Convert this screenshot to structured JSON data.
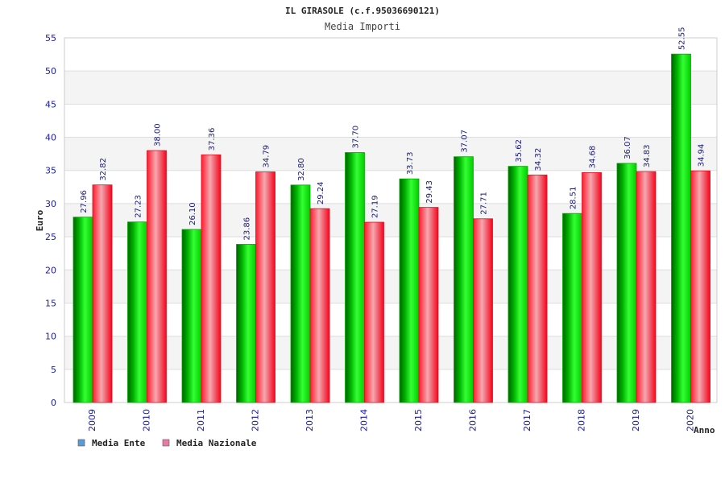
{
  "chart_data": {
    "type": "bar",
    "title": "IL GIRASOLE (c.f.95036690121)",
    "subtitle": "Media Importi",
    "xlabel": "Anno",
    "ylabel": "Euro",
    "ylim": [
      0,
      55
    ],
    "yticks": [
      0,
      5,
      10,
      15,
      20,
      25,
      30,
      35,
      40,
      45,
      50,
      55
    ],
    "grid": true,
    "legend_placement": "bottom-left",
    "categories": [
      "2009",
      "2010",
      "2011",
      "2012",
      "2013",
      "2014",
      "2015",
      "2016",
      "2017",
      "2018",
      "2019",
      "2020"
    ],
    "series": [
      {
        "name": "Media Ente",
        "color": "#00a000",
        "legend_color": "#5b9bd5",
        "values": [
          27.96,
          27.23,
          26.1,
          23.86,
          32.8,
          37.7,
          33.73,
          37.07,
          35.62,
          28.51,
          36.07,
          52.55
        ],
        "labels": [
          "27.96",
          "27.23",
          "26.10",
          "23.86",
          "32.80",
          "37.70",
          "33.73",
          "37.07",
          "35.62",
          "28.51",
          "36.07",
          "52.55"
        ]
      },
      {
        "name": "Media Nazionale",
        "color": "#e02030",
        "legend_color": "#e87aa6",
        "values": [
          32.82,
          38.0,
          37.36,
          34.79,
          29.24,
          27.19,
          29.43,
          27.71,
          34.32,
          34.68,
          34.83,
          34.94
        ],
        "labels": [
          "32.82",
          "38.00",
          "37.36",
          "34.79",
          "29.24",
          "27.19",
          "29.43",
          "27.71",
          "34.32",
          "34.68",
          "34.83",
          "34.94"
        ]
      }
    ]
  }
}
